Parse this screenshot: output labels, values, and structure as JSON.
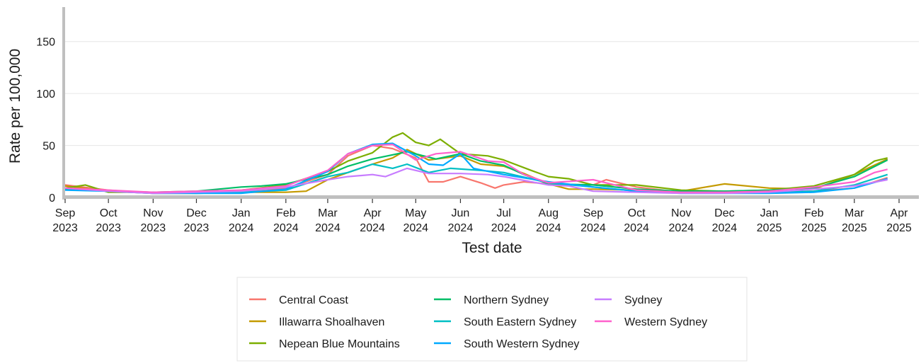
{
  "chart_data": {
    "type": "line",
    "title": "",
    "xlabel": "Test date",
    "ylabel": "Rate per 100,000",
    "ylim": [
      0,
      175
    ],
    "y_ticks": [
      0,
      50,
      100,
      150
    ],
    "x_range": [
      "2023-09-01",
      "2025-04-01"
    ],
    "x_ticks": [
      {
        "date": "2023-09-01",
        "month": "Sep",
        "year": "2023"
      },
      {
        "date": "2023-10-01",
        "month": "Oct",
        "year": "2023"
      },
      {
        "date": "2023-11-01",
        "month": "Nov",
        "year": "2023"
      },
      {
        "date": "2023-12-01",
        "month": "Dec",
        "year": "2023"
      },
      {
        "date": "2024-01-01",
        "month": "Jan",
        "year": "2024"
      },
      {
        "date": "2024-02-01",
        "month": "Feb",
        "year": "2024"
      },
      {
        "date": "2024-03-01",
        "month": "Mar",
        "year": "2024"
      },
      {
        "date": "2024-04-01",
        "month": "Apr",
        "year": "2024"
      },
      {
        "date": "2024-05-01",
        "month": "May",
        "year": "2024"
      },
      {
        "date": "2024-06-01",
        "month": "Jun",
        "year": "2024"
      },
      {
        "date": "2024-07-01",
        "month": "Jul",
        "year": "2024"
      },
      {
        "date": "2024-08-01",
        "month": "Aug",
        "year": "2024"
      },
      {
        "date": "2024-09-01",
        "month": "Sep",
        "year": "2024"
      },
      {
        "date": "2024-10-01",
        "month": "Oct",
        "year": "2024"
      },
      {
        "date": "2024-11-01",
        "month": "Nov",
        "year": "2024"
      },
      {
        "date": "2024-12-01",
        "month": "Dec",
        "year": "2024"
      },
      {
        "date": "2025-01-01",
        "month": "Jan",
        "year": "2025"
      },
      {
        "date": "2025-02-01",
        "month": "Feb",
        "year": "2025"
      },
      {
        "date": "2025-03-01",
        "month": "Mar",
        "year": "2025"
      },
      {
        "date": "2025-04-01",
        "month": "Apr",
        "year": "2025"
      }
    ],
    "grid": "horizontal",
    "legend_position": "bottom",
    "series": [
      {
        "name": "Central Coast",
        "color": "#f8766d",
        "points": [
          [
            "2023-09-01",
            12
          ],
          [
            "2023-10-01",
            7
          ],
          [
            "2023-11-01",
            4
          ],
          [
            "2023-12-01",
            5
          ],
          [
            "2024-01-01",
            6
          ],
          [
            "2024-02-01",
            9
          ],
          [
            "2024-03-01",
            22
          ],
          [
            "2024-03-15",
            40
          ],
          [
            "2024-04-01",
            50
          ],
          [
            "2024-04-15",
            47
          ],
          [
            "2024-05-01",
            38
          ],
          [
            "2024-05-10",
            15
          ],
          [
            "2024-05-20",
            15
          ],
          [
            "2024-06-01",
            20
          ],
          [
            "2024-06-15",
            14
          ],
          [
            "2024-06-25",
            9
          ],
          [
            "2024-07-01",
            12
          ],
          [
            "2024-07-15",
            15
          ],
          [
            "2024-08-01",
            13
          ],
          [
            "2024-08-15",
            12
          ],
          [
            "2024-09-01",
            12
          ],
          [
            "2024-09-10",
            17
          ],
          [
            "2024-10-01",
            10
          ],
          [
            "2024-11-01",
            5
          ],
          [
            "2024-12-01",
            5
          ],
          [
            "2025-01-01",
            5
          ],
          [
            "2025-02-01",
            6
          ],
          [
            "2025-03-01",
            9
          ],
          [
            "2025-03-24",
            19
          ]
        ]
      },
      {
        "name": "Illawarra Shoalhaven",
        "color": "#c49a00",
        "points": [
          [
            "2023-09-01",
            11
          ],
          [
            "2023-10-01",
            6
          ],
          [
            "2023-11-01",
            4
          ],
          [
            "2023-12-01",
            4
          ],
          [
            "2024-01-01",
            5
          ],
          [
            "2024-02-01",
            5
          ],
          [
            "2024-02-15",
            6
          ],
          [
            "2024-03-01",
            17
          ],
          [
            "2024-03-15",
            24
          ],
          [
            "2024-04-01",
            32
          ],
          [
            "2024-04-15",
            38
          ],
          [
            "2024-04-25",
            46
          ],
          [
            "2024-05-10",
            36
          ],
          [
            "2024-06-01",
            40
          ],
          [
            "2024-06-15",
            32
          ],
          [
            "2024-07-01",
            30
          ],
          [
            "2024-07-15",
            23
          ],
          [
            "2024-08-01",
            13
          ],
          [
            "2024-08-15",
            8
          ],
          [
            "2024-09-01",
            8
          ],
          [
            "2024-10-01",
            7
          ],
          [
            "2024-11-01",
            6
          ],
          [
            "2024-12-01",
            13
          ],
          [
            "2025-01-01",
            9
          ],
          [
            "2025-02-01",
            8
          ],
          [
            "2025-03-01",
            22
          ],
          [
            "2025-03-24",
            37
          ]
        ]
      },
      {
        "name": "Nepean Blue Mountains",
        "color": "#7cae00",
        "points": [
          [
            "2023-09-01",
            9
          ],
          [
            "2023-09-15",
            12
          ],
          [
            "2023-10-01",
            5
          ],
          [
            "2023-11-01",
            5
          ],
          [
            "2023-12-01",
            5
          ],
          [
            "2024-01-01",
            7
          ],
          [
            "2024-02-01",
            12
          ],
          [
            "2024-03-01",
            25
          ],
          [
            "2024-03-15",
            35
          ],
          [
            "2024-04-01",
            43
          ],
          [
            "2024-04-15",
            58
          ],
          [
            "2024-04-22",
            62
          ],
          [
            "2024-05-01",
            53
          ],
          [
            "2024-05-10",
            50
          ],
          [
            "2024-05-18",
            56
          ],
          [
            "2024-06-01",
            42
          ],
          [
            "2024-06-20",
            40
          ],
          [
            "2024-07-01",
            36
          ],
          [
            "2024-07-20",
            26
          ],
          [
            "2024-08-01",
            20
          ],
          [
            "2024-08-15",
            18
          ],
          [
            "2024-09-01",
            12
          ],
          [
            "2024-10-01",
            12
          ],
          [
            "2024-11-01",
            7
          ],
          [
            "2024-12-01",
            6
          ],
          [
            "2025-01-01",
            7
          ],
          [
            "2025-02-01",
            11
          ],
          [
            "2025-03-01",
            22
          ],
          [
            "2025-03-15",
            35
          ],
          [
            "2025-03-24",
            38
          ]
        ]
      },
      {
        "name": "Northern Sydney",
        "color": "#00be67",
        "points": [
          [
            "2023-09-01",
            8
          ],
          [
            "2023-10-01",
            6
          ],
          [
            "2023-11-01",
            5
          ],
          [
            "2023-12-01",
            6
          ],
          [
            "2024-01-01",
            10
          ],
          [
            "2024-01-15",
            11
          ],
          [
            "2024-02-01",
            13
          ],
          [
            "2024-03-01",
            22
          ],
          [
            "2024-03-15",
            30
          ],
          [
            "2024-04-01",
            37
          ],
          [
            "2024-04-15",
            41
          ],
          [
            "2024-04-25",
            44
          ],
          [
            "2024-05-15",
            37
          ],
          [
            "2024-06-01",
            42
          ],
          [
            "2024-06-15",
            35
          ],
          [
            "2024-07-01",
            31
          ],
          [
            "2024-07-15",
            22
          ],
          [
            "2024-08-01",
            13
          ],
          [
            "2024-09-01",
            12
          ],
          [
            "2024-10-01",
            8
          ],
          [
            "2024-11-01",
            6
          ],
          [
            "2024-12-01",
            6
          ],
          [
            "2025-01-01",
            7
          ],
          [
            "2025-02-01",
            9
          ],
          [
            "2025-03-01",
            20
          ],
          [
            "2025-03-24",
            36
          ]
        ]
      },
      {
        "name": "South Eastern Sydney",
        "color": "#00bfc4",
        "points": [
          [
            "2023-09-01",
            8
          ],
          [
            "2023-10-01",
            6
          ],
          [
            "2023-11-01",
            5
          ],
          [
            "2023-12-01",
            4
          ],
          [
            "2024-01-01",
            5
          ],
          [
            "2024-02-01",
            7
          ],
          [
            "2024-03-01",
            20
          ],
          [
            "2024-03-15",
            24
          ],
          [
            "2024-04-01",
            32
          ],
          [
            "2024-04-15",
            28
          ],
          [
            "2024-04-25",
            32
          ],
          [
            "2024-05-10",
            24
          ],
          [
            "2024-05-25",
            28
          ],
          [
            "2024-06-15",
            26
          ],
          [
            "2024-07-01",
            24
          ],
          [
            "2024-08-01",
            14
          ],
          [
            "2024-09-01",
            10
          ],
          [
            "2024-10-01",
            6
          ],
          [
            "2024-11-01",
            5
          ],
          [
            "2024-12-01",
            5
          ],
          [
            "2025-01-01",
            5
          ],
          [
            "2025-02-01",
            6
          ],
          [
            "2025-03-01",
            12
          ],
          [
            "2025-03-24",
            22
          ]
        ]
      },
      {
        "name": "South Western Sydney",
        "color": "#00a9ff",
        "points": [
          [
            "2023-09-01",
            7
          ],
          [
            "2023-10-01",
            6
          ],
          [
            "2023-11-01",
            4
          ],
          [
            "2023-12-01",
            4
          ],
          [
            "2024-01-01",
            4
          ],
          [
            "2024-02-01",
            8
          ],
          [
            "2024-03-01",
            25
          ],
          [
            "2024-03-15",
            42
          ],
          [
            "2024-04-01",
            51
          ],
          [
            "2024-04-15",
            52
          ],
          [
            "2024-05-01",
            40
          ],
          [
            "2024-05-10",
            32
          ],
          [
            "2024-05-20",
            31
          ],
          [
            "2024-06-01",
            42
          ],
          [
            "2024-06-10",
            28
          ],
          [
            "2024-07-01",
            22
          ],
          [
            "2024-08-01",
            15
          ],
          [
            "2024-09-01",
            10
          ],
          [
            "2024-10-01",
            6
          ],
          [
            "2024-11-01",
            4
          ],
          [
            "2024-12-01",
            4
          ],
          [
            "2025-01-01",
            4
          ],
          [
            "2025-02-01",
            5
          ],
          [
            "2025-03-01",
            9
          ],
          [
            "2025-03-24",
            18
          ]
        ]
      },
      {
        "name": "Sydney",
        "color": "#c77cff",
        "points": [
          [
            "2023-09-01",
            9
          ],
          [
            "2023-10-01",
            6
          ],
          [
            "2023-11-01",
            4
          ],
          [
            "2023-12-01",
            5
          ],
          [
            "2024-01-01",
            6
          ],
          [
            "2024-02-01",
            10
          ],
          [
            "2024-03-01",
            17
          ],
          [
            "2024-03-15",
            20
          ],
          [
            "2024-04-01",
            22
          ],
          [
            "2024-04-10",
            20
          ],
          [
            "2024-04-25",
            28
          ],
          [
            "2024-05-10",
            23
          ],
          [
            "2024-06-01",
            23
          ],
          [
            "2024-06-20",
            22
          ],
          [
            "2024-07-01",
            20
          ],
          [
            "2024-08-01",
            12
          ],
          [
            "2024-08-15",
            11
          ],
          [
            "2024-09-01",
            6
          ],
          [
            "2024-10-01",
            5
          ],
          [
            "2024-11-01",
            4
          ],
          [
            "2024-12-01",
            4
          ],
          [
            "2025-01-01",
            5
          ],
          [
            "2025-02-01",
            8
          ],
          [
            "2025-03-01",
            11
          ],
          [
            "2025-03-24",
            17
          ]
        ]
      },
      {
        "name": "Western Sydney",
        "color": "#ff61cc",
        "points": [
          [
            "2023-09-01",
            9
          ],
          [
            "2023-10-01",
            7
          ],
          [
            "2023-11-01",
            5
          ],
          [
            "2023-12-01",
            6
          ],
          [
            "2024-01-01",
            7
          ],
          [
            "2024-02-01",
            11
          ],
          [
            "2024-03-01",
            26
          ],
          [
            "2024-03-15",
            42
          ],
          [
            "2024-04-01",
            50
          ],
          [
            "2024-04-15",
            51
          ],
          [
            "2024-05-01",
            36
          ],
          [
            "2024-05-15",
            42
          ],
          [
            "2024-06-01",
            44
          ],
          [
            "2024-06-20",
            35
          ],
          [
            "2024-07-01",
            34
          ],
          [
            "2024-07-15",
            22
          ],
          [
            "2024-08-01",
            14
          ],
          [
            "2024-09-01",
            17
          ],
          [
            "2024-10-01",
            7
          ],
          [
            "2024-11-01",
            5
          ],
          [
            "2024-12-01",
            5
          ],
          [
            "2025-01-01",
            6
          ],
          [
            "2025-02-01",
            10
          ],
          [
            "2025-03-01",
            15
          ],
          [
            "2025-03-15",
            24
          ],
          [
            "2025-03-24",
            27
          ]
        ]
      }
    ]
  }
}
